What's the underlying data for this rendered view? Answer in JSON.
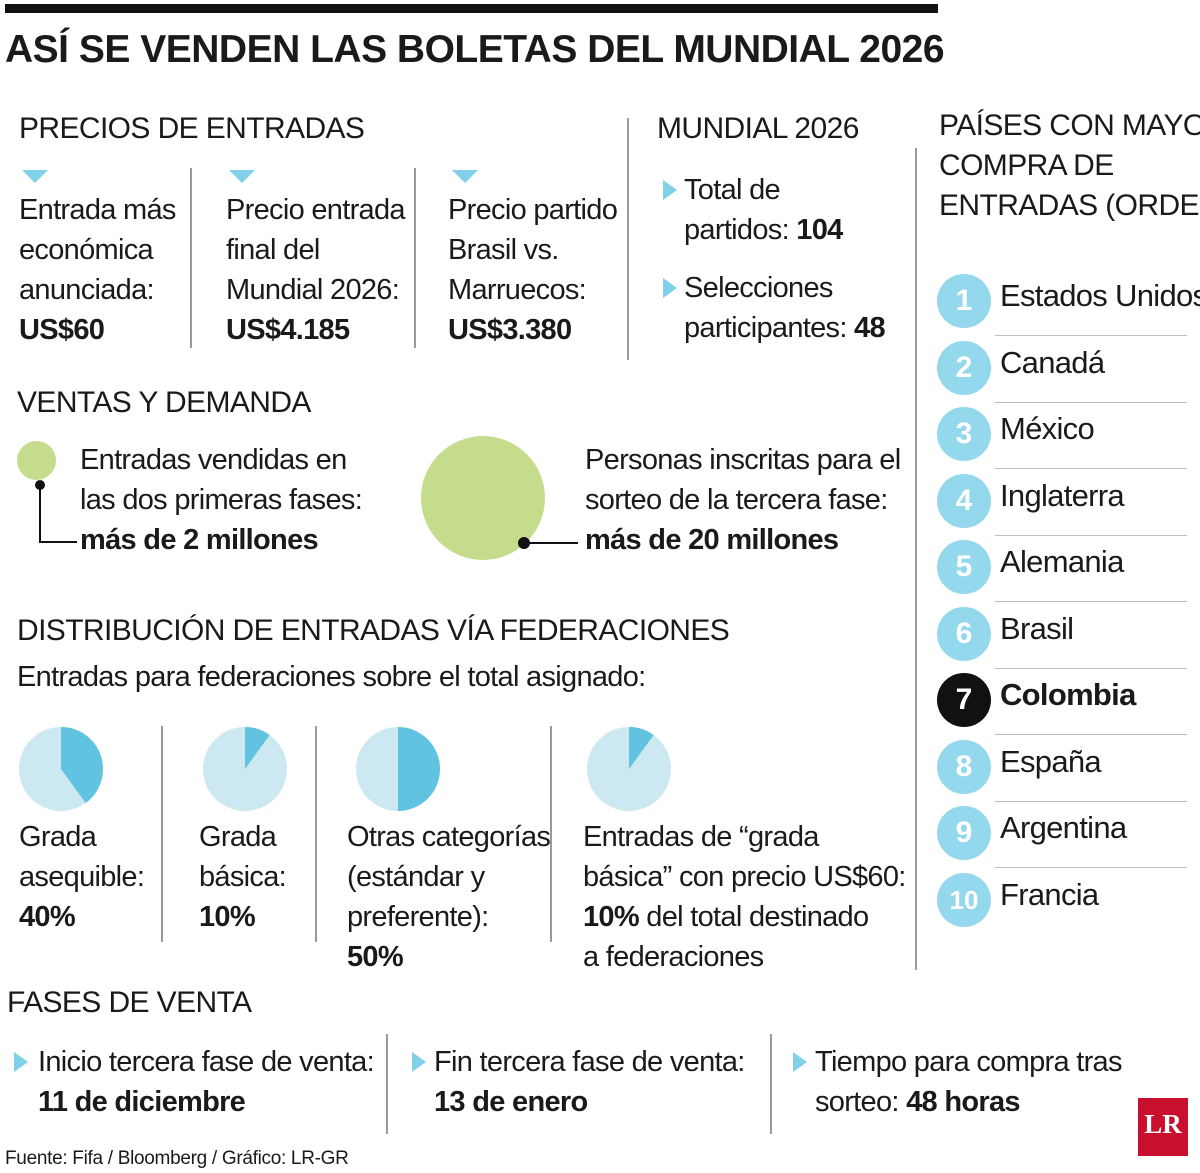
{
  "title": "ASÍ SE VENDEN LAS BOLETAS DEL MUNDIAL 2026",
  "colors": {
    "accent": "#7fd0e8",
    "pie_light": "#cce9f2",
    "pie_dark": "#62c3e0",
    "bubble": "#c5dc8c",
    "highlight": "#111111",
    "logo": "#c8102e"
  },
  "precios": {
    "heading": "PRECIOS DE ENTRADAS",
    "items": [
      {
        "lines": [
          "Entrada más",
          "económica",
          "anunciada:"
        ],
        "value": "US$60"
      },
      {
        "lines": [
          "Precio entrada",
          "final del",
          "Mundial 2026:"
        ],
        "value": "US$4.185"
      },
      {
        "lines": [
          "Precio partido",
          "Brasil vs.",
          "Marruecos:"
        ],
        "value": "US$3.380"
      }
    ]
  },
  "mundial": {
    "heading": "MUNDIAL 2026",
    "items": [
      {
        "line1": "Total de",
        "line2": "partidos:",
        "value": "104"
      },
      {
        "line1": "Selecciones",
        "line2": "participantes:",
        "value": "48"
      }
    ]
  },
  "paises": {
    "heading_lines": [
      "PAÍSES CON MAYOR",
      "COMPRA DE",
      "ENTRADAS (ORDEN)"
    ],
    "ranking": [
      {
        "rank": "1",
        "name": "Estados Unidos"
      },
      {
        "rank": "2",
        "name": "Canadá"
      },
      {
        "rank": "3",
        "name": "México"
      },
      {
        "rank": "4",
        "name": "Inglaterra"
      },
      {
        "rank": "5",
        "name": "Alemania"
      },
      {
        "rank": "6",
        "name": "Brasil"
      },
      {
        "rank": "7",
        "name": "Colombia",
        "highlight": true
      },
      {
        "rank": "8",
        "name": "España"
      },
      {
        "rank": "9",
        "name": "Argentina"
      },
      {
        "rank": "10",
        "name": "Francia"
      }
    ]
  },
  "ventas": {
    "heading": "VENTAS Y DEMANDA",
    "left": {
      "lines": [
        "Entradas vendidas en",
        "las dos primeras fases:"
      ],
      "value": "más de 2 millones",
      "millions": 2
    },
    "right": {
      "lines": [
        "Personas inscritas para el",
        "sorteo de la tercera fase:"
      ],
      "value": "más de 20 millones",
      "millions": 20
    }
  },
  "distribucion": {
    "heading": "DISTRIBUCIÓN DE ENTRADAS VÍA FEDERACIONES",
    "subtitle": "Entradas para federaciones sobre el total asignado:",
    "items": [
      {
        "lines": [
          "Grada",
          "asequible:"
        ],
        "value": "40%",
        "percent": 40
      },
      {
        "lines": [
          "Grada",
          "básica:"
        ],
        "value": "10%",
        "percent": 10
      },
      {
        "lines": [
          "Otras categorías",
          "(estándar y",
          "preferente):"
        ],
        "value": "50%",
        "percent": 50
      },
      {
        "lines": [
          "Entradas de “grada",
          "básica” con precio US$60:"
        ],
        "value": "10%",
        "value_suffix": " del total destinado",
        "tail": "a federaciones",
        "percent": 10
      }
    ]
  },
  "fases": {
    "heading": "FASES DE VENTA",
    "items": [
      {
        "label": "Inicio tercera fase de venta:",
        "value": "11 de diciembre"
      },
      {
        "label": "Fin tercera fase de venta:",
        "value": "13 de enero"
      },
      {
        "label": "Tiempo para compra tras",
        "label2": "sorteo: ",
        "value": "48 horas"
      }
    ]
  },
  "source": "Fuente: Fifa / Bloomberg / Gráfico: LR-GR",
  "logo": "LR"
}
